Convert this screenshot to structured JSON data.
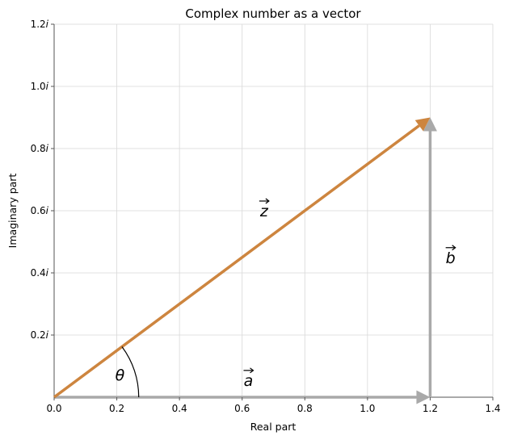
{
  "chart_data": {
    "type": "line",
    "title": "Complex number as a vector",
    "xlabel": "Real part",
    "ylabel": "Imaginary part",
    "xlim": [
      0.0,
      1.4
    ],
    "ylim": [
      0.0,
      1.2
    ],
    "x_ticks": [
      0.0,
      0.2,
      0.4,
      0.6,
      0.8,
      1.0,
      1.2,
      1.4
    ],
    "x_tick_labels": [
      "0.0",
      "0.2",
      "0.4",
      "0.6",
      "0.8",
      "1.0",
      "1.2",
      "1.4"
    ],
    "y_ticks": [
      0.2,
      0.4,
      0.6,
      0.8,
      1.0,
      1.2
    ],
    "y_tick_labels": [
      {
        "num": "0.2",
        "unit": "i"
      },
      {
        "num": "0.4",
        "unit": "i"
      },
      {
        "num": "0.6",
        "unit": "i"
      },
      {
        "num": "0.8",
        "unit": "i"
      },
      {
        "num": "1.0",
        "unit": "i"
      },
      {
        "num": "1.2",
        "unit": "i"
      }
    ],
    "grid": true,
    "vectors": [
      {
        "id": "z",
        "label": "z",
        "from": [
          0.0,
          0.0
        ],
        "to": [
          1.2,
          0.9
        ],
        "color": "#cd853f",
        "label_at": [
          0.67,
          0.6
        ]
      },
      {
        "id": "a",
        "label": "a",
        "from": [
          0.0,
          0.0
        ],
        "to": [
          1.2,
          0.0
        ],
        "color": "#a9a9a9",
        "label_at": [
          0.62,
          0.055
        ]
      },
      {
        "id": "b",
        "label": "b",
        "from": [
          1.2,
          0.0
        ],
        "to": [
          1.2,
          0.9
        ],
        "color": "#a9a9a9",
        "label_at": [
          1.265,
          0.45
        ]
      }
    ],
    "angle": {
      "label": "θ",
      "radius": 0.27,
      "label_at": [
        0.21,
        0.07
      ]
    }
  }
}
